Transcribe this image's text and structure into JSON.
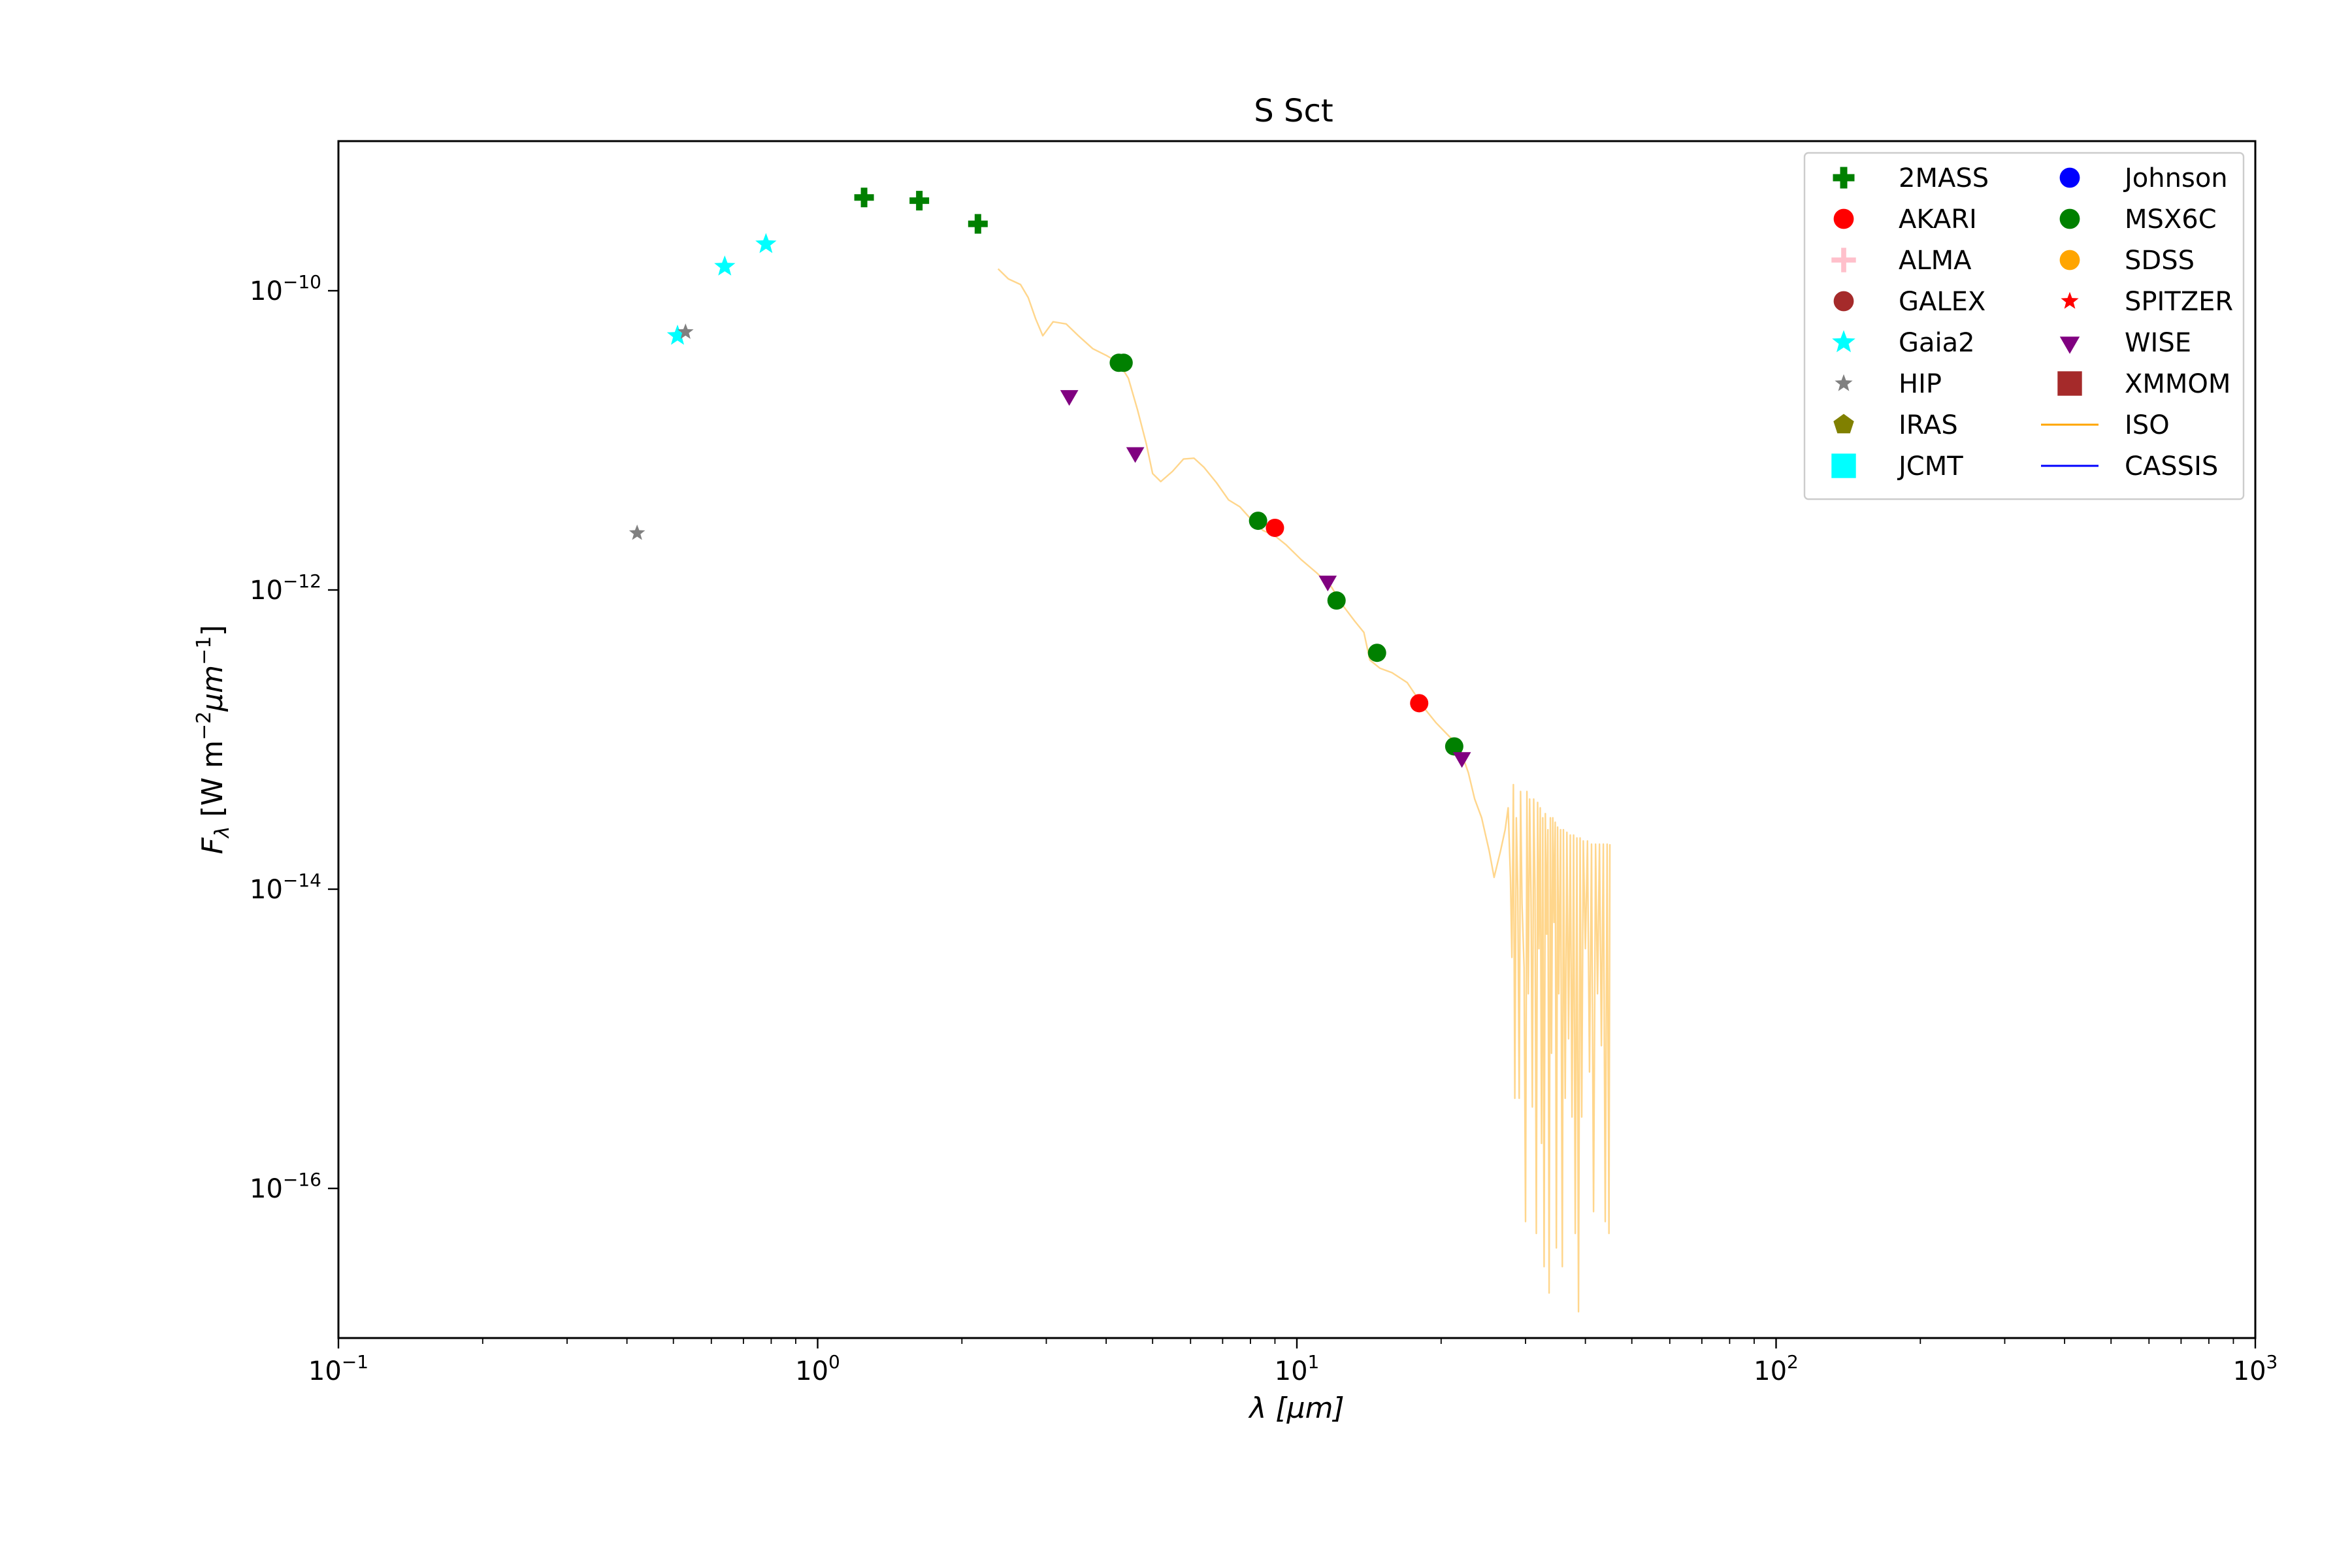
{
  "chart_data": {
    "type": "scatter",
    "title": "S Sct",
    "xlabel": "λ [μm]",
    "ylabel": "F_λ [W m^-2 μm^-1]",
    "xscale": "log",
    "yscale": "log",
    "xlim": [
      0.1,
      1000
    ],
    "ylim": [
      1e-17,
      1e-09
    ],
    "grid": false,
    "legend_position": "top-right",
    "x_tick_exponents": [
      "−1",
      "0",
      "1",
      "2",
      "3"
    ],
    "y_tick_exponents": [
      "−16",
      "−14",
      "−12",
      "−10"
    ],
    "series": [
      {
        "name": "2MASS",
        "marker": "plus",
        "color": "#008000",
        "points": [
          [
            1.25,
            4.2e-10
          ],
          [
            1.63,
            4e-10
          ],
          [
            2.16,
            2.8e-10
          ]
        ]
      },
      {
        "name": "AKARI",
        "marker": "circle",
        "color": "#ff0000",
        "points": [
          [
            9.0,
            2.6e-12
          ],
          [
            18.0,
            1.75e-13
          ]
        ]
      },
      {
        "name": "ALMA",
        "marker": "plus-thin",
        "color": "#ffc0cb",
        "points": []
      },
      {
        "name": "GALEX",
        "marker": "circle",
        "color": "#a52a2a",
        "points": []
      },
      {
        "name": "Gaia2",
        "marker": "star",
        "color": "#00ffff",
        "points": [
          [
            0.51,
            5e-11
          ],
          [
            0.64,
            1.45e-10
          ],
          [
            0.78,
            2.05e-10
          ]
        ]
      },
      {
        "name": "HIP",
        "marker": "star-small",
        "color": "#808080",
        "points": [
          [
            0.42,
            2.4e-12
          ],
          [
            0.53,
            5.3e-11
          ]
        ]
      },
      {
        "name": "IRAS",
        "marker": "pentagon",
        "color": "#808000",
        "points": []
      },
      {
        "name": "JCMT",
        "marker": "square",
        "color": "#00ffff",
        "points": []
      },
      {
        "name": "Johnson",
        "marker": "circle",
        "color": "#0000ff",
        "points": []
      },
      {
        "name": "MSX6C",
        "marker": "circle",
        "color": "#008000",
        "points": [
          [
            4.25,
            3.3e-11
          ],
          [
            4.35,
            3.3e-11
          ],
          [
            8.3,
            2.9e-12
          ],
          [
            12.1,
            8.5e-13
          ],
          [
            14.7,
            3.8e-13
          ],
          [
            21.3,
            9e-14
          ]
        ]
      },
      {
        "name": "SDSS",
        "marker": "circle",
        "color": "#ffa500",
        "points": []
      },
      {
        "name": "SPITZER",
        "marker": "star-small",
        "color": "#ff0000",
        "points": []
      },
      {
        "name": "WISE",
        "marker": "triangle-down",
        "color": "#800080",
        "points": [
          [
            3.35,
            2e-11
          ],
          [
            4.6,
            8.3e-12
          ],
          [
            11.6,
            1.15e-12
          ],
          [
            22.1,
            7.6e-14
          ]
        ]
      },
      {
        "name": "XMMOM",
        "marker": "square",
        "color": "#a52a2a",
        "points": []
      }
    ],
    "lines": [
      {
        "name": "ISO",
        "color": "#ffa500",
        "alpha": 0.45,
        "points": [
          [
            2.38,
            1.4e-10
          ],
          [
            2.5,
            1.2e-10
          ],
          [
            2.65,
            1.1e-10
          ],
          [
            2.75,
            9e-11
          ],
          [
            2.85,
            6.5e-11
          ],
          [
            2.95,
            5e-11
          ],
          [
            3.1,
            6.2e-11
          ],
          [
            3.3,
            6e-11
          ],
          [
            3.5,
            5e-11
          ],
          [
            3.75,
            4.1e-11
          ],
          [
            4.0,
            3.7e-11
          ],
          [
            4.25,
            3.3e-11
          ],
          [
            4.45,
            2.6e-11
          ],
          [
            4.65,
            1.6e-11
          ],
          [
            4.85,
            9.5e-12
          ],
          [
            5.0,
            6e-12
          ],
          [
            5.2,
            5.3e-12
          ],
          [
            5.5,
            6.2e-12
          ],
          [
            5.8,
            7.5e-12
          ],
          [
            6.1,
            7.6e-12
          ],
          [
            6.4,
            6.6e-12
          ],
          [
            6.8,
            5.2e-12
          ],
          [
            7.2,
            4e-12
          ],
          [
            7.6,
            3.6e-12
          ],
          [
            8.0,
            3e-12
          ],
          [
            8.5,
            2.5e-12
          ],
          [
            9.0,
            2.3e-12
          ],
          [
            9.5,
            2e-12
          ],
          [
            10.2,
            1.6e-12
          ],
          [
            11.0,
            1.3e-12
          ],
          [
            11.8,
            1.05e-12
          ],
          [
            12.5,
            7.8e-13
          ],
          [
            13.2,
            6.2e-13
          ],
          [
            13.8,
            5.2e-13
          ],
          [
            14.2,
            3.4e-13
          ],
          [
            14.9,
            3e-13
          ],
          [
            15.8,
            2.8e-13
          ],
          [
            17.0,
            2.4e-13
          ],
          [
            18.5,
            1.6e-13
          ],
          [
            19.5,
            1.3e-13
          ],
          [
            20.5,
            1.1e-13
          ],
          [
            21.8,
            9e-14
          ],
          [
            22.8,
            6e-14
          ],
          [
            23.5,
            4e-14
          ],
          [
            24.3,
            3e-14
          ],
          [
            25.2,
            1.8e-14
          ],
          [
            25.8,
            1.2e-14
          ],
          [
            26.6,
            1.8e-14
          ],
          [
            27.2,
            2.5e-14
          ],
          [
            27.6,
            3.5e-14
          ],
          [
            27.9,
            1.2e-14
          ],
          [
            28.1,
            3.5e-15
          ],
          [
            28.3,
            5e-14
          ],
          [
            28.5,
            4e-16
          ],
          [
            28.7,
            3e-14
          ],
          [
            28.9,
            1e-14
          ],
          [
            29.1,
            4e-16
          ],
          [
            29.3,
            4.5e-14
          ],
          [
            29.5,
            8e-15
          ],
          [
            29.8,
            3e-15
          ],
          [
            30.0,
            6e-17
          ],
          [
            30.2,
            4.5e-14
          ],
          [
            30.4,
            2e-15
          ],
          [
            30.6,
            4e-14
          ],
          [
            30.8,
            9e-15
          ],
          [
            31.0,
            3.5e-16
          ],
          [
            31.2,
            4e-14
          ],
          [
            31.4,
            1e-14
          ],
          [
            31.6,
            5e-17
          ],
          [
            31.8,
            3.8e-14
          ],
          [
            32.0,
            4e-15
          ],
          [
            32.2,
            3.5e-14
          ],
          [
            32.4,
            2e-16
          ],
          [
            32.6,
            3e-14
          ],
          [
            32.8,
            3e-17
          ],
          [
            33.0,
            3.2e-14
          ],
          [
            33.2,
            5e-15
          ],
          [
            33.4,
            2.5e-14
          ],
          [
            33.6,
            2e-17
          ],
          [
            33.8,
            3e-14
          ],
          [
            34.0,
            8e-16
          ],
          [
            34.2,
            3e-14
          ],
          [
            34.4,
            6e-15
          ],
          [
            34.6,
            2.8e-14
          ],
          [
            34.8,
            4e-17
          ],
          [
            35.0,
            2.6e-14
          ],
          [
            35.2,
            2e-15
          ],
          [
            35.5,
            2.5e-14
          ],
          [
            35.8,
            3e-17
          ],
          [
            36.0,
            2.5e-14
          ],
          [
            36.3,
            4e-16
          ],
          [
            36.6,
            2.4e-14
          ],
          [
            36.9,
            1e-15
          ],
          [
            37.2,
            2.3e-14
          ],
          [
            37.5,
            3e-16
          ],
          [
            37.8,
            2.3e-14
          ],
          [
            38.1,
            5e-17
          ],
          [
            38.4,
            2.2e-14
          ],
          [
            38.7,
            1.5e-17
          ],
          [
            39.0,
            2.2e-14
          ],
          [
            39.3,
            3e-16
          ],
          [
            39.6,
            2.1e-14
          ],
          [
            40.0,
            4e-15
          ],
          [
            40.4,
            2.1e-14
          ],
          [
            40.8,
            6e-16
          ],
          [
            41.2,
            2e-14
          ],
          [
            41.6,
            7e-17
          ],
          [
            42.0,
            2e-14
          ],
          [
            42.4,
            2e-15
          ],
          [
            42.8,
            2e-14
          ],
          [
            43.2,
            9e-16
          ],
          [
            43.6,
            2e-14
          ],
          [
            44.0,
            6e-17
          ],
          [
            44.4,
            2e-14
          ],
          [
            44.8,
            5e-17
          ],
          [
            45.0,
            2e-14
          ]
        ]
      },
      {
        "name": "CASSIS",
        "color": "#0000ff",
        "alpha": 1.0,
        "points": []
      }
    ]
  }
}
